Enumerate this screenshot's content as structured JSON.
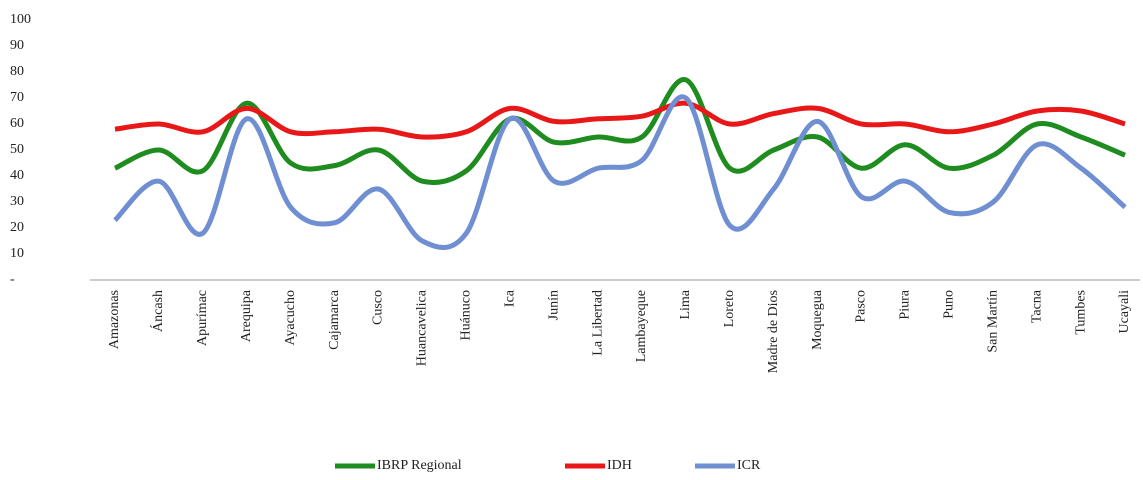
{
  "chart_data": {
    "type": "line",
    "categories": [
      "Amazonas",
      "Áncash",
      "Apurímac",
      "Arequipa",
      "Ayacucho",
      "Cajamarca",
      "Cusco",
      "Huancavelica",
      "Huánuco",
      "Ica",
      "Junín",
      "La Libertad",
      "Lambayeque",
      "Lima",
      "Loreto",
      "Madre de Dios",
      "Moquegua",
      "Pasco",
      "Piura",
      "Puno",
      "San Martín",
      "Tacna",
      "Tumbes",
      "Ucayali"
    ],
    "series": [
      {
        "name": "IBRP Regional",
        "color": "#1e8c1e",
        "values": [
          43,
          50,
          42,
          68,
          45,
          44,
          50,
          38,
          42,
          62,
          53,
          55,
          55,
          77,
          43,
          50,
          55,
          43,
          52,
          43,
          48,
          60,
          55,
          48
        ]
      },
      {
        "name": "IDH",
        "color": "#e81818",
        "values": [
          58,
          60,
          57,
          66,
          57,
          57,
          58,
          55,
          57,
          66,
          61,
          62,
          63,
          68,
          60,
          64,
          66,
          60,
          60,
          57,
          60,
          65,
          65,
          60
        ]
      },
      {
        "name": "ICR",
        "color": "#6f8fd2",
        "values": [
          23,
          38,
          18,
          62,
          28,
          22,
          35,
          15,
          18,
          62,
          38,
          43,
          46,
          70,
          21,
          35,
          61,
          32,
          38,
          26,
          30,
          52,
          43,
          28
        ]
      }
    ],
    "ylim": [
      0,
      100
    ],
    "yticks": [
      {
        "value": 0,
        "label": "-"
      },
      10,
      20,
      30,
      40,
      50,
      60,
      70,
      80,
      90,
      100
    ],
    "grid": false,
    "legend": "bottom"
  }
}
